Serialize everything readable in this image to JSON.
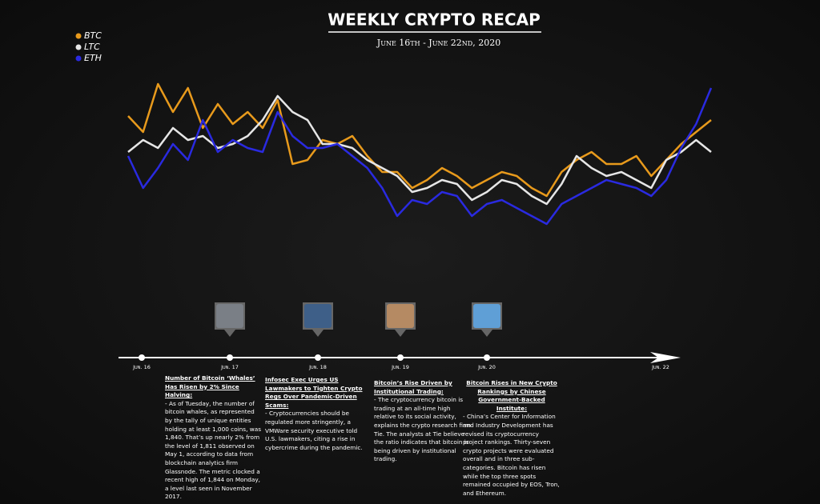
{
  "chart_data": {
    "type": "line",
    "title": "WEEKLY CRYPTO RECAP",
    "subtitle": "June 16th - June 22nd, 2020",
    "ylim": [
      0,
      100
    ],
    "series": [
      {
        "name": "BTC",
        "color": "#e89a1c",
        "values": [
          77.5,
          67.5,
          97.5,
          80,
          95,
          70,
          85,
          72.5,
          80,
          70,
          87.5,
          47.5,
          50,
          62.5,
          60,
          65,
          52.5,
          42.5,
          42.5,
          32.5,
          37.5,
          45,
          40,
          32.5,
          37.5,
          42.5,
          40,
          32.5,
          27.5,
          42.5,
          50,
          55,
          47.5,
          47.5,
          52.5,
          40,
          50,
          60,
          67.5,
          75
        ]
      },
      {
        "name": "LTC",
        "color": "#e6e6e6",
        "values": [
          55,
          62.5,
          57.5,
          70,
          62.5,
          65,
          57.5,
          60,
          65,
          75,
          90,
          80,
          75,
          60,
          60,
          57.5,
          50,
          45,
          40,
          30,
          32.5,
          37.5,
          35,
          25,
          30,
          37.5,
          35,
          27.5,
          22.5,
          35,
          52.5,
          45,
          40,
          42.5,
          37.5,
          32.5,
          50,
          55,
          62.5,
          55
        ]
      },
      {
        "name": "ETH",
        "color": "#2a2ae0",
        "values": [
          52.5,
          32.5,
          45,
          60,
          50,
          75,
          55,
          62.5,
          57.5,
          55,
          80,
          65,
          57.5,
          57.5,
          60,
          52.5,
          45,
          32.5,
          15,
          25,
          22.5,
          30,
          27.5,
          15,
          22.5,
          25,
          20,
          15,
          10,
          22.5,
          27.5,
          32.5,
          37.5,
          35,
          32.5,
          27.5,
          37.5,
          57.5,
          72.5,
          95
        ]
      }
    ]
  },
  "timeline": {
    "labels": [
      "Jun. 16",
      "Jun. 17",
      "Jun. 18",
      "Jun. 19",
      "Jun. 20",
      "Jun. 22"
    ]
  },
  "articles": [
    {
      "title": "Number of Bitcoin ‘Whales’ Has Risen by 2% Since Halving:",
      "body": "- As of Tuesday, the number of bitcoin whales, as represented by the tally of unique entities holding at least 1,000 coins, was 1,840. That’s up nearly 2% from the level of 1,811 observed on May 1, according to data from blockchain analytics firm Glassnode. The metric clocked a recent high of 1,844 on Monday, a level last seen in November 2017."
    },
    {
      "title": "Infosec Exec Urges US Lawmakers to Tighten Crypto Regs Over Pandemic-Driven Scams:",
      "body": "- Cryptocurrencies should be regulated more stringently, a VMWare security executive told U.S. lawmakers, citing a rise in cybercrime during the pandemic."
    },
    {
      "title": "Bitcoin’s Rise Driven by Institutional Trading:",
      "body": "- The cryptocurrency bitcoin is trading at an all-time high relative to its social activity, explains the crypto research firm Tie. The analysts at Tie believe the ratio indicates that bitcoin is being driven by institutional trading."
    },
    {
      "title": "Bitcoin Rises in New Crypto Rankings by Chinese Government-Backed Institute:",
      "body": "- China’s Center for Information and Industry Development has revised its cryptocurrency project rankings. Thirty-seven crypto projects were evaluated overall and in three sub-categories. Bitcoin has risen while the top three spots remained occupied by EOS, Tron, and Ethereum."
    }
  ]
}
